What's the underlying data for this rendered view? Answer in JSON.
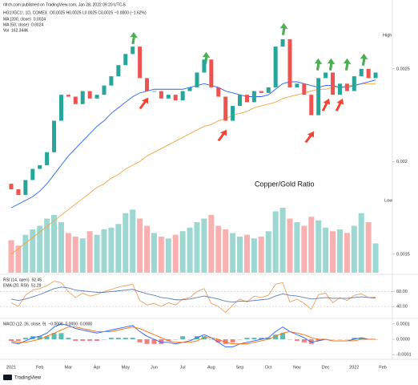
{
  "source": "nfrch.com published on TradingView.com, Jan 28, 2022 09:20 UTC-5",
  "footer": "TradingView",
  "chart_data": [
    {
      "type": "candlestick",
      "title": "HG1!/GC1!, 1D, COMEX",
      "ohlc_text": "O0.0025 H0.0025 L0.0025 C0.0025 −0.0000 (−1.62%)",
      "annotation": "Copper/Gold Ratio",
      "axis_notes": [
        "High",
        "Low"
      ],
      "up_color": "#26a69a",
      "down_color": "#ef5350",
      "categories": [
        "2021",
        null,
        null,
        null,
        "Feb",
        null,
        null,
        null,
        "Mar",
        null,
        null,
        null,
        "Apr",
        null,
        null,
        null,
        "May",
        null,
        null,
        null,
        "Jun",
        null,
        null,
        null,
        "Jul",
        null,
        null,
        null,
        "Aug",
        null,
        null,
        null,
        "Sep",
        null,
        null,
        null,
        "Oct",
        null,
        null,
        null,
        "Nov",
        null,
        null,
        null,
        "Dec",
        null,
        null,
        null,
        "2022",
        null,
        null,
        null,
        "Feb"
      ],
      "open": [
        0.00188,
        0.00185,
        0.00182,
        0.0019,
        0.00196,
        0.00198,
        0.00205,
        0.00222,
        0.00236,
        0.00235,
        0.00231,
        0.00238,
        0.00234,
        0.00236,
        0.00241,
        0.00246,
        0.00252,
        0.00258,
        0.00262,
        0.00245,
        0.00238,
        0.00238,
        0.00234,
        0.00236,
        0.00233,
        0.00238,
        0.0024,
        0.00248,
        0.00255,
        0.0024,
        0.00235,
        0.00222,
        0.0023,
        0.00236,
        0.00232,
        0.00238,
        0.00237,
        0.0024,
        0.00262,
        0.00266,
        0.0024,
        0.00242,
        0.00236,
        0.00225,
        0.00245,
        0.00248,
        0.00236,
        0.00242,
        0.00238,
        0.00246,
        0.0025,
        0.00245,
        null
      ],
      "close": [
        0.00185,
        0.00182,
        0.0019,
        0.00196,
        0.00198,
        0.00205,
        0.00222,
        0.00236,
        0.00235,
        0.00231,
        0.00238,
        0.00234,
        0.00236,
        0.00241,
        0.00246,
        0.00252,
        0.00258,
        0.00262,
        0.00245,
        0.00238,
        0.00238,
        0.00234,
        0.00236,
        0.00233,
        0.00238,
        0.0024,
        0.00248,
        0.00255,
        0.0024,
        0.00235,
        0.00222,
        0.0023,
        0.00236,
        0.00232,
        0.00238,
        0.00237,
        0.0024,
        0.00262,
        0.00266,
        0.0024,
        0.00242,
        0.00236,
        0.00225,
        0.00245,
        0.00248,
        0.00236,
        0.00242,
        0.00238,
        0.00246,
        0.0025,
        0.00245,
        0.00248,
        null
      ],
      "series": [
        {
          "name": "MA (200, close)",
          "value_label": "0.0024",
          "color": "#f7a340",
          "values": [
            0.0015,
            0.00153,
            0.00156,
            0.00159,
            0.00162,
            0.00165,
            0.00168,
            0.00171,
            0.00174,
            0.00177,
            0.0018,
            0.00183,
            0.00186,
            0.00188,
            0.00191,
            0.00193,
            0.00196,
            0.00198,
            0.002,
            0.00203,
            0.00205,
            0.00207,
            0.00209,
            0.00211,
            0.00213,
            0.00215,
            0.00217,
            0.00219,
            0.0022,
            0.00222,
            0.00223,
            0.00225,
            0.00226,
            0.00227,
            0.00229,
            0.0023,
            0.00231,
            0.00232,
            0.00234,
            0.00235,
            0.00236,
            0.00237,
            0.00238,
            0.00239,
            0.00239,
            0.0024,
            0.0024,
            0.00241,
            0.00241,
            0.00242,
            0.00242,
            0.00242,
            null
          ]
        },
        {
          "name": "MA (50, close)",
          "value_label": "0.0024",
          "color": "#2962ff",
          "values": [
            0.00175,
            0.00177,
            0.00179,
            0.00181,
            0.00184,
            0.00188,
            0.00193,
            0.00198,
            0.00203,
            0.00207,
            0.00211,
            0.00215,
            0.00219,
            0.00222,
            0.00226,
            0.00229,
            0.00232,
            0.00235,
            0.00237,
            0.00238,
            0.00239,
            0.00239,
            0.00239,
            0.00239,
            0.00239,
            0.0024,
            0.00241,
            0.00242,
            0.00241,
            0.0024,
            0.00238,
            0.00237,
            0.00236,
            0.00235,
            0.00235,
            0.00235,
            0.00236,
            0.00239,
            0.00242,
            0.00243,
            0.00243,
            0.00242,
            0.00241,
            0.0024,
            0.00241,
            0.00241,
            0.0024,
            0.0024,
            0.00241,
            0.00242,
            0.00243,
            0.00244,
            null
          ]
        }
      ],
      "volume": {
        "name": "Vol",
        "value_label": "162.344K",
        "ylim": [
          0,
          400
        ],
        "values": [
          180,
          150,
          210,
          240,
          260,
          300,
          320,
          280,
          220,
          200,
          190,
          230,
          210,
          240,
          250,
          270,
          330,
          350,
          300,
          260,
          220,
          200,
          190,
          210,
          230,
          250,
          280,
          300,
          320,
          260,
          240,
          220,
          200,
          210,
          190,
          200,
          230,
          340,
          360,
          300,
          280,
          260,
          310,
          290,
          250,
          230,
          240,
          220,
          260,
          330,
          280,
          162.344,
          null
        ]
      },
      "ylim": [
        0.0014,
        0.00272
      ],
      "yticks": [
        0.0015,
        0.002,
        0.0025
      ]
    },
    {
      "type": "line",
      "series": [
        {
          "name": "RSI (14, open)",
          "value_label": "52.45",
          "color": "#f0a060",
          "values": [
            45,
            40,
            55,
            62,
            64,
            68,
            74,
            72,
            60,
            52,
            58,
            54,
            56,
            60,
            63,
            66,
            68,
            70,
            48,
            42,
            44,
            40,
            45,
            42,
            50,
            52,
            60,
            64,
            44,
            40,
            32,
            42,
            50,
            46,
            54,
            52,
            55,
            70,
            72,
            46,
            50,
            44,
            36,
            56,
            58,
            45,
            52,
            48,
            55,
            57,
            52,
            52.45,
            null
          ]
        },
        {
          "name": "EMA (20, RSI)",
          "value_label": "51.29",
          "color": "#5b7fb8",
          "values": [
            50,
            48,
            50,
            53,
            56,
            60,
            64,
            66,
            65,
            62,
            61,
            60,
            59,
            59,
            60,
            61,
            62,
            63,
            60,
            57,
            55,
            52,
            51,
            49,
            49,
            50,
            52,
            54,
            52,
            50,
            47,
            46,
            47,
            47,
            48,
            49,
            50,
            54,
            57,
            55,
            54,
            52,
            50,
            51,
            52,
            51,
            51,
            51,
            52,
            53,
            52,
            51.29,
            null
          ]
        }
      ],
      "ylim": [
        25,
        80
      ],
      "yticks": [
        {
          "value": 60,
          "label": "60.00"
        },
        {
          "value": 40,
          "label": "40.00"
        }
      ]
    },
    {
      "type": "macd",
      "title": "MACD (12, 26, close, 9)",
      "series": [
        {
          "name": "MACD",
          "value_label": "−0.0000",
          "color": "#2962ff",
          "values": [
            -2e-05,
            -3e-05,
            -1e-05,
            1e-05,
            2e-05,
            4e-05,
            8e-05,
            0.0001,
            9e-05,
            7e-05,
            6e-05,
            5e-05,
            4e-05,
            5e-05,
            6e-05,
            7e-05,
            8e-05,
            9e-05,
            5e-05,
            2e-05,
            0,
            -2e-05,
            -2e-05,
            -3e-05,
            -2e-05,
            -1e-05,
            1e-05,
            3e-05,
            1e-05,
            -2e-05,
            -5e-05,
            -5e-05,
            -3e-05,
            -2e-05,
            -1e-05,
            0,
            1e-05,
            5e-05,
            8e-05,
            5e-05,
            3e-05,
            1e-05,
            -2e-05,
            -1e-05,
            0,
            -1e-05,
            -1e-05,
            -1e-05,
            0,
            1e-05,
            0,
            0,
            null
          ]
        },
        {
          "name": "Signal",
          "value_label": "0.0000",
          "color": "#ff6d00",
          "values": [
            -1e-05,
            -2e-05,
            -2e-05,
            -1e-05,
            0,
            2e-05,
            4e-05,
            6e-05,
            8e-05,
            8e-05,
            7e-05,
            6e-05,
            5e-05,
            5e-05,
            5e-05,
            6e-05,
            7e-05,
            8e-05,
            7e-05,
            5e-05,
            3e-05,
            1e-05,
            -1e-05,
            -2e-05,
            -2e-05,
            -2e-05,
            -1e-05,
            1e-05,
            1e-05,
            0,
            -2e-05,
            -3e-05,
            -3e-05,
            -3e-05,
            -2e-05,
            -1e-05,
            0,
            2e-05,
            4e-05,
            5e-05,
            4e-05,
            3e-05,
            1e-05,
            0,
            0,
            -1e-05,
            -1e-05,
            -1e-05,
            -1e-05,
            0,
            0,
            0,
            null
          ]
        }
      ],
      "histogram": {
        "name": "Histogram",
        "value_label": "0.0000",
        "up_color": "#26a69a",
        "down_color": "#ef5350",
        "values": [
          -1e-05,
          -1e-05,
          1e-05,
          2e-05,
          2e-05,
          2e-05,
          4e-05,
          4e-05,
          1e-05,
          -1e-05,
          -1e-05,
          -1e-05,
          -1e-05,
          0,
          1e-05,
          1e-05,
          1e-05,
          1e-05,
          -2e-05,
          -3e-05,
          -3e-05,
          -3e-05,
          -1e-05,
          0,
          2e-05,
          0,
          2e-05,
          2e-05,
          0,
          -2e-05,
          -3e-05,
          -2e-05,
          0,
          1e-05,
          1e-05,
          1e-05,
          1e-05,
          3e-05,
          4e-05,
          0,
          -1e-05,
          -2e-05,
          -3e-05,
          -1e-05,
          0,
          0,
          0,
          0,
          1e-05,
          1e-05,
          0,
          0,
          null
        ]
      },
      "ylim": [
        -0.00012,
        0.00012
      ],
      "yticks": [
        0.0001,
        {
          "value": 0,
          "label": "0.0000"
        },
        -0.0001
      ]
    }
  ]
}
